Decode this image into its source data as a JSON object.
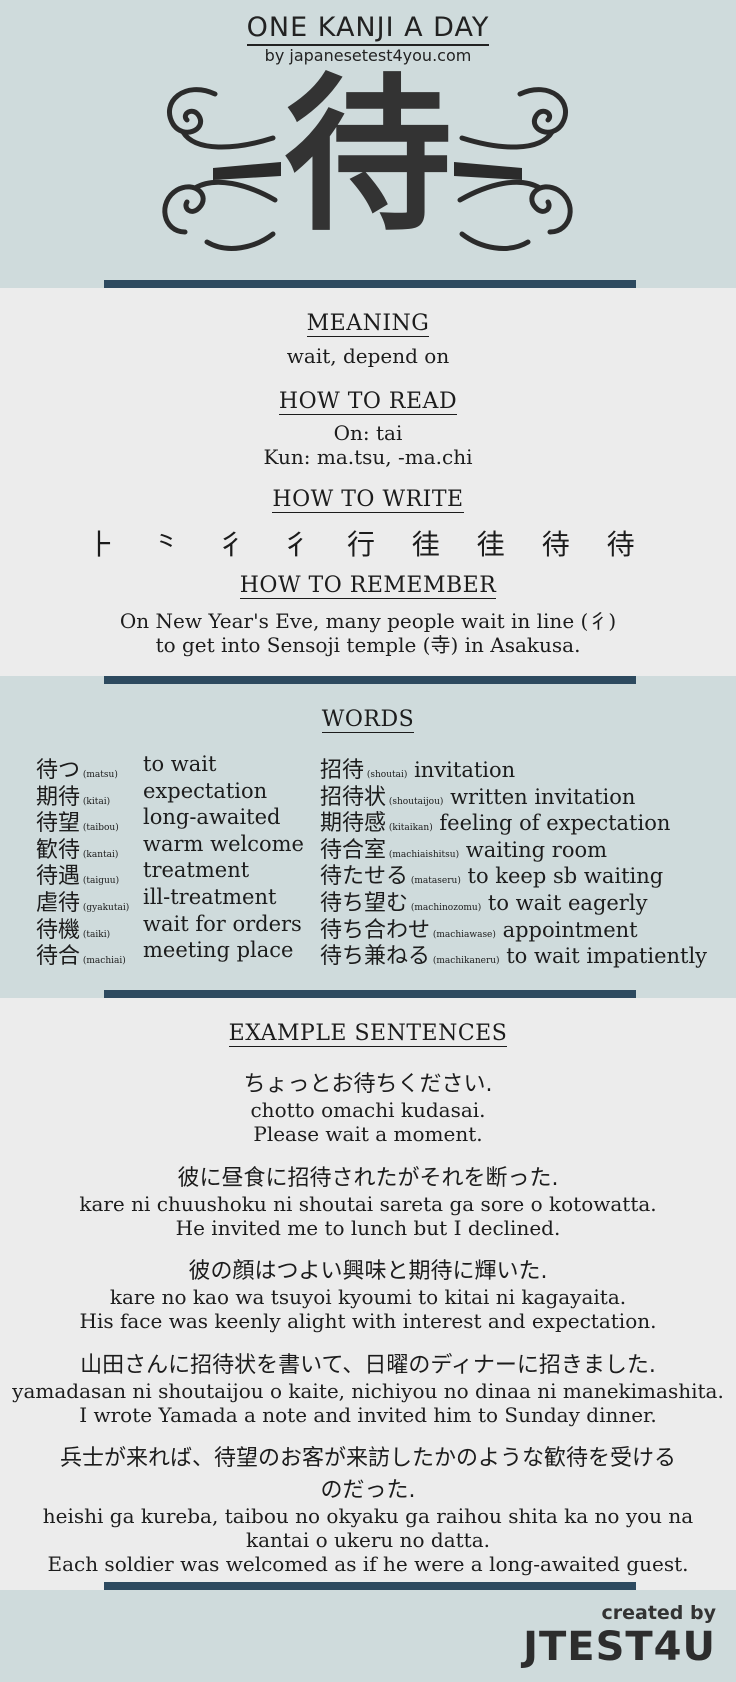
{
  "header": {
    "series_title": "ONE KANJI A DAY",
    "byline": "by japanesetest4you.com",
    "kanji": "待"
  },
  "meaning": {
    "heading": "MEANING",
    "text": "wait, depend on"
  },
  "reading": {
    "heading": "HOW TO READ",
    "on": "On: tai",
    "kun": "Kun: ma.tsu, -ma.chi"
  },
  "writing": {
    "heading": "HOW TO WRITE",
    "strokes": "⺊ ⺀ 彳 彳 行 徍 徍 待 待"
  },
  "remember": {
    "heading": "HOW TO REMEMBER",
    "line1": "On New Year's Eve, many people wait in line (彳)",
    "line2": "to get into Sensoji temple (寺) in Asakusa."
  },
  "words": {
    "heading": "WORDS",
    "left": [
      {
        "jp": "待つ",
        "reading": "(matsu)",
        "en": "to wait"
      },
      {
        "jp": "期待",
        "reading": "(kitai)",
        "en": "expectation"
      },
      {
        "jp": "待望",
        "reading": "(taibou)",
        "en": "long-awaited"
      },
      {
        "jp": "歓待",
        "reading": "(kantai)",
        "en": "warm welcome"
      },
      {
        "jp": "待遇",
        "reading": "(taiguu)",
        "en": "treatment"
      },
      {
        "jp": "虐待",
        "reading": "(gyakutai)",
        "en": "ill-treatment"
      },
      {
        "jp": "待機",
        "reading": "(taiki)",
        "en": "wait for orders"
      },
      {
        "jp": "待合",
        "reading": "(machiai)",
        "en": "meeting place"
      }
    ],
    "right": [
      {
        "jp": "招待",
        "reading": "(shoutai)",
        "en": "invitation"
      },
      {
        "jp": "招待状",
        "reading": "(shoutaijou)",
        "en": "written invitation"
      },
      {
        "jp": "期待感",
        "reading": "(kitaikan)",
        "en": "feeling of expectation"
      },
      {
        "jp": "待合室",
        "reading": "(machiaishitsu)",
        "en": "waiting room"
      },
      {
        "jp": "待たせる",
        "reading": "(mataseru)",
        "en": "to keep sb waiting"
      },
      {
        "jp": "待ち望む",
        "reading": "(machinozomu)",
        "en": "to wait eagerly"
      },
      {
        "jp": "待ち合わせ",
        "reading": "(machiawase)",
        "en": "appointment"
      },
      {
        "jp": "待ち兼ねる",
        "reading": "(machikaneru)",
        "en": "to wait impatiently"
      }
    ]
  },
  "examples": {
    "heading": "EXAMPLE SENTENCES",
    "items": [
      {
        "jp": "ちょっとお待ちください.",
        "romaji": "chotto omachi kudasai.",
        "en": "Please wait a moment."
      },
      {
        "jp": "彼に昼食に招待されたがそれを断った.",
        "romaji": "kare ni chuushoku ni shoutai sareta ga sore o kotowatta.",
        "en": "He invited me to lunch but I declined."
      },
      {
        "jp": "彼の顔はつよい興味と期待に輝いた.",
        "romaji": "kare no kao wa tsuyoi kyoumi to kitai ni kagayaita.",
        "en": "His face was keenly alight with interest and expectation."
      },
      {
        "jp": "山田さんに招待状を書いて、日曜のディナーに招きました.",
        "romaji": "yamadasan ni shoutaijou o kaite, nichiyou no dinaa ni manekimashita.",
        "en": "I wrote Yamada a note and invited him to Sunday dinner."
      },
      {
        "jp": "兵士が来れば、待望のお客が来訪したかのような歓待を受ける",
        "jp2": "のだった.",
        "romaji": "heishi ga kureba, taibou no okyaku ga raihou shita ka no you na",
        "romaji2": "kantai o ukeru no datta.",
        "en": "Each soldier was welcomed as if he were a long-awaited guest."
      }
    ]
  },
  "footer": {
    "created_by": "created by",
    "brand": "JTEST4U"
  }
}
